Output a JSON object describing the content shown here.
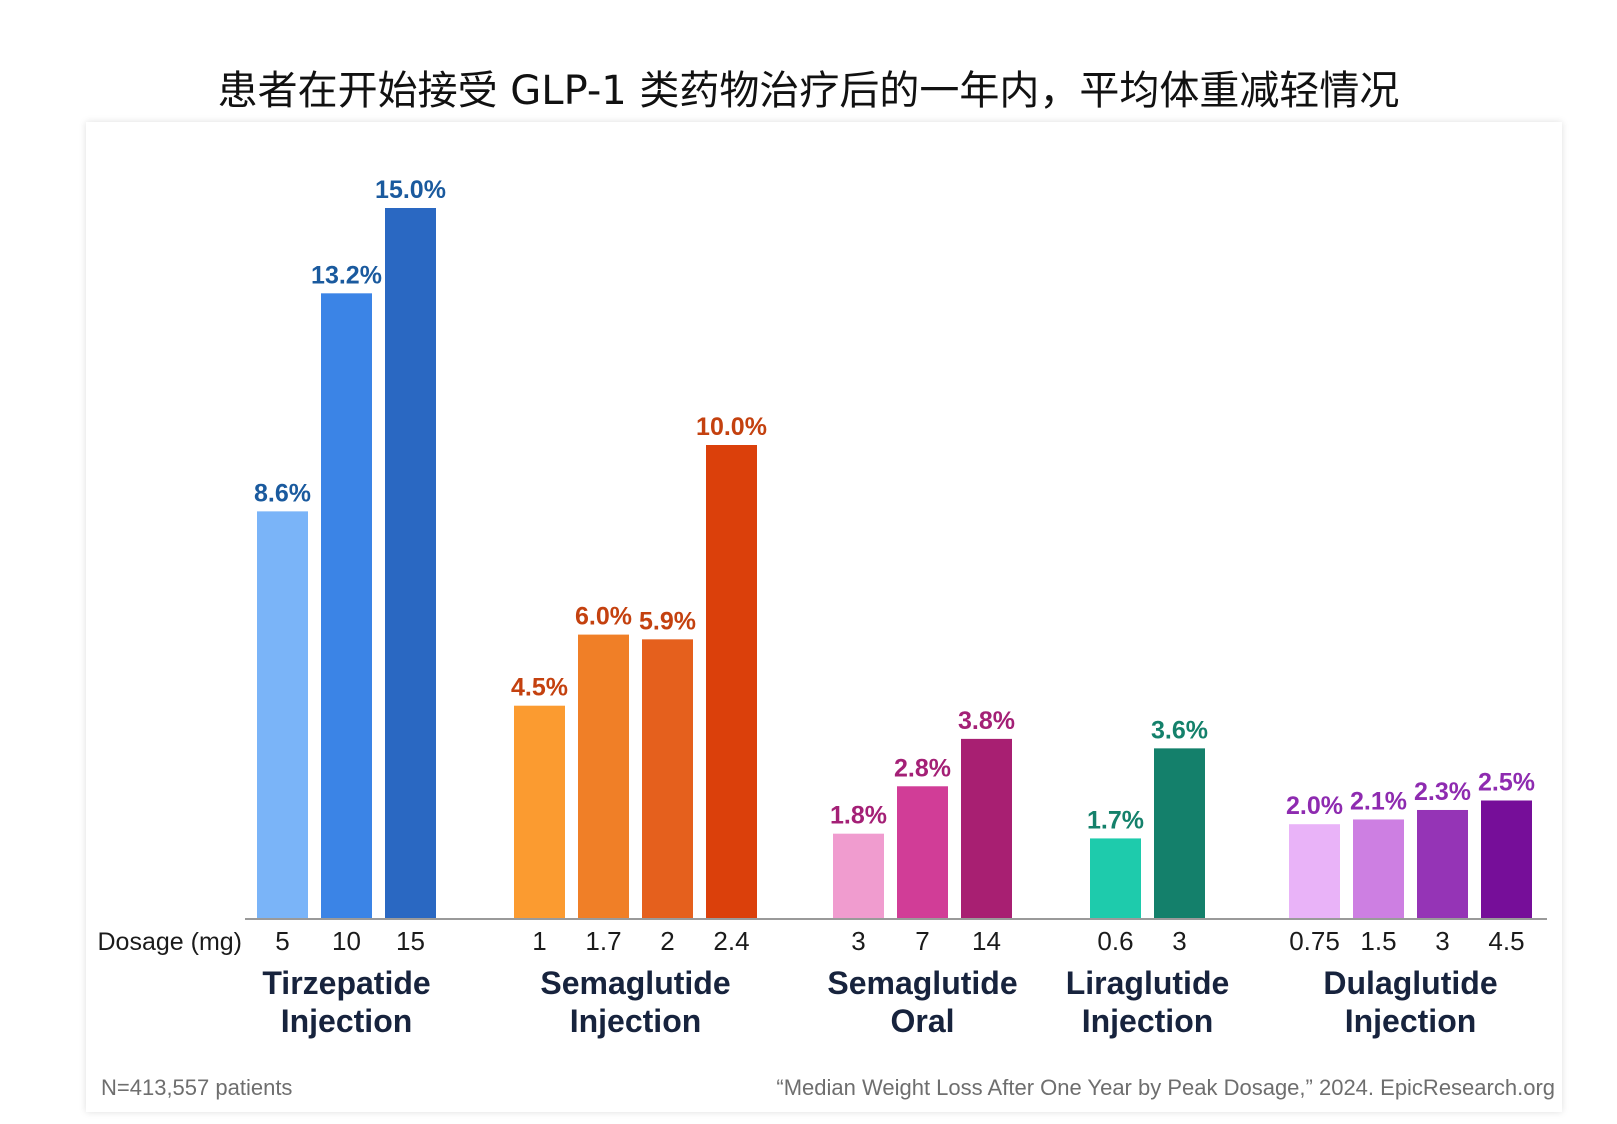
{
  "title": "患者在开始接受 GLP-1 类药物治疗后的一年内，平均体重减轻情况",
  "footer": {
    "sample_size": "N=413,557 patients",
    "source": "“Median Weight Loss After One Year by Peak Dosage,” 2024. EpicResearch.org"
  },
  "chart_data": {
    "type": "bar",
    "title": "患者在开始接受 GLP-1 类药物治疗后的一年内，平均体重减轻情况",
    "xlabel": "Dosage (mg)",
    "ylabel": "",
    "ylim": [
      0,
      15
    ],
    "value_unit": "%",
    "grid": false,
    "groups": [
      {
        "name": [
          "Tirzepatide",
          "Injection"
        ],
        "label_color": "#1a5a9e",
        "bars": [
          {
            "dose": "5",
            "value": 8.6,
            "label": "8.6%",
            "color": "#7ab4f8"
          },
          {
            "dose": "10",
            "value": 13.2,
            "label": "13.2%",
            "color": "#3b84e6"
          },
          {
            "dose": "15",
            "value": 15.0,
            "label": "15.0%",
            "color": "#2a68c2"
          }
        ]
      },
      {
        "name": [
          "Semaglutide",
          "Injection"
        ],
        "label_color": "#c4410f",
        "bars": [
          {
            "dose": "1",
            "value": 4.5,
            "label": "4.5%",
            "color": "#fb9b30"
          },
          {
            "dose": "1.7",
            "value": 6.0,
            "label": "6.0%",
            "color": "#f07f27"
          },
          {
            "dose": "2",
            "value": 5.9,
            "label": "5.9%",
            "color": "#e5601d"
          },
          {
            "dose": "2.4",
            "value": 10.0,
            "label": "10.0%",
            "color": "#db400b"
          }
        ]
      },
      {
        "name": [
          "Semaglutide",
          "Oral"
        ],
        "label_color": "#a42076",
        "bars": [
          {
            "dose": "3",
            "value": 1.8,
            "label": "1.8%",
            "color": "#f09ccf"
          },
          {
            "dose": "7",
            "value": 2.8,
            "label": "2.8%",
            "color": "#d13d97"
          },
          {
            "dose": "14",
            "value": 3.8,
            "label": "3.8%",
            "color": "#a81f72"
          }
        ]
      },
      {
        "name": [
          "Liraglutide",
          "Injection"
        ],
        "label_color": "#14816b",
        "bars": [
          {
            "dose": "0.6",
            "value": 1.7,
            "label": "1.7%",
            "color": "#1ecbac"
          },
          {
            "dose": "3",
            "value": 3.6,
            "label": "3.6%",
            "color": "#14806b"
          }
        ]
      },
      {
        "name": [
          "Dulaglutide",
          "Injection"
        ],
        "label_color": "#8e2bb0",
        "bars": [
          {
            "dose": "0.75",
            "value": 2.0,
            "label": "2.0%",
            "color": "#e9b3f8"
          },
          {
            "dose": "1.5",
            "value": 2.1,
            "label": "2.1%",
            "color": "#cd7fe2"
          },
          {
            "dose": "3",
            "value": 2.3,
            "label": "2.3%",
            "color": "#9534b6"
          },
          {
            "dose": "4.5",
            "value": 2.5,
            "label": "2.5%",
            "color": "#760e99"
          }
        ]
      }
    ]
  }
}
